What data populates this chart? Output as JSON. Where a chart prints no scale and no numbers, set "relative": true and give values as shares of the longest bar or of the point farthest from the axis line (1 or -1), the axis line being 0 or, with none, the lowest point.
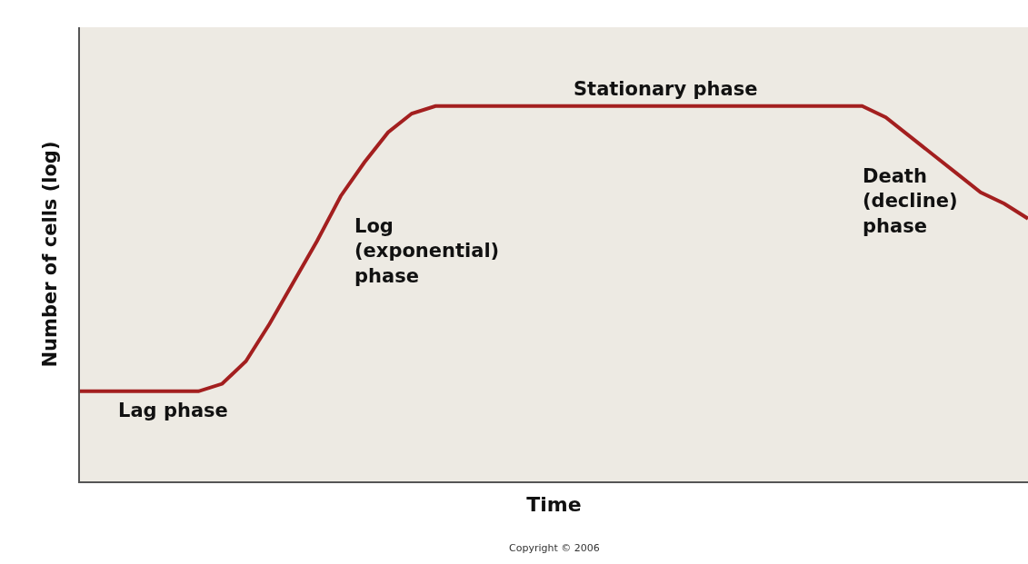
{
  "chart_data": {
    "type": "line",
    "relative": true,
    "xlabel": "Time",
    "ylabel": "Number of cells (log)",
    "categories": [
      null,
      null,
      null,
      null,
      null,
      null,
      null,
      null,
      null,
      null,
      null,
      null,
      null,
      null,
      null,
      null,
      null,
      null,
      null,
      null,
      null,
      null,
      null,
      null,
      null,
      null,
      null,
      null,
      null,
      null,
      null,
      null,
      null,
      null,
      null,
      null,
      null,
      null,
      null,
      null,
      null
    ],
    "series": [
      {
        "color": "#a31f1f",
        "values": [
          0.24,
          0.24,
          0.24,
          0.24,
          0.24,
          0.24,
          0.26,
          0.32,
          0.42,
          0.53,
          0.64,
          0.76,
          0.85,
          0.93,
          0.98,
          1,
          1,
          1,
          1,
          1,
          1,
          1,
          1,
          1,
          1,
          1,
          1,
          1,
          1,
          1,
          1,
          1,
          1,
          1,
          0.97,
          0.92,
          0.87,
          0.82,
          0.77,
          0.74,
          0.7
        ]
      }
    ],
    "annotations": [
      "Lag phase",
      "Log\n(exponential)\nphase",
      "Stationary phase",
      "Death\n(decline)\nphase",
      "Copyright © 2006"
    ],
    "marker": "none",
    "line_style": "solid"
  }
}
